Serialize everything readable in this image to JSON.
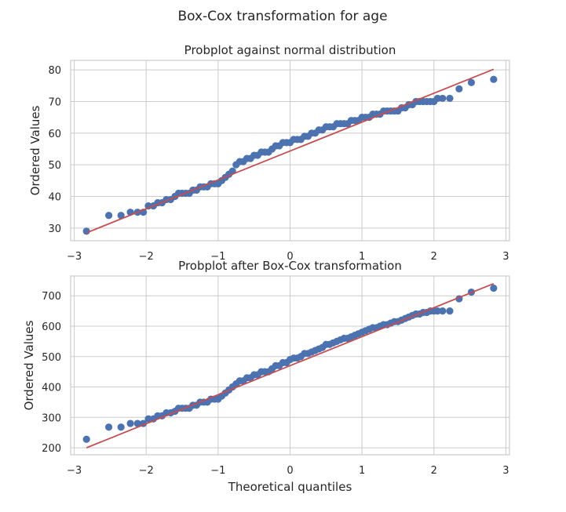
{
  "colors": {
    "points": "#4c72b0",
    "fit_line": "#c44e52",
    "grid": "#cccccc",
    "frame": "#cccccc"
  },
  "chart_data": {
    "type": "scatter",
    "suptitle": "Box-Cox transformation for age",
    "panels": [
      {
        "title": "Probplot against normal distribution",
        "xlabel": "",
        "ylabel": "Ordered Values",
        "xlim": [
          -3.05,
          3.05
        ],
        "ylim": [
          26,
          83
        ],
        "xticks": [
          -3,
          -2,
          -1,
          0,
          1,
          2,
          3
        ],
        "xtick_labels": [
          "−3",
          "−2",
          "−1",
          "0",
          "1",
          "2",
          "3"
        ],
        "yticks": [
          30,
          40,
          50,
          60,
          70,
          80
        ],
        "ytick_labels": [
          "30",
          "40",
          "50",
          "60",
          "70",
          "80"
        ],
        "grid": true,
        "fit_line": {
          "x": [
            -2.83,
            2.83
          ],
          "y": [
            28.5,
            80.2
          ]
        },
        "points": {
          "x": [
            -2.83,
            -2.52,
            -2.35,
            -2.22,
            -2.12,
            -2.04,
            -1.97,
            -1.9,
            -1.84,
            -1.78,
            -1.72,
            -1.66,
            -1.6,
            -1.55,
            -1.5,
            -1.45,
            -1.4,
            -1.35,
            -1.3,
            -1.25,
            -1.2,
            -1.15,
            -1.1,
            -1.05,
            -1.0,
            -0.95,
            -0.9,
            -0.85,
            -0.8,
            -0.75,
            -0.7,
            -0.65,
            -0.6,
            -0.55,
            -0.5,
            -0.45,
            -0.4,
            -0.35,
            -0.3,
            -0.25,
            -0.2,
            -0.15,
            -0.1,
            -0.05,
            0.0,
            0.05,
            0.1,
            0.15,
            0.2,
            0.25,
            0.3,
            0.35,
            0.4,
            0.45,
            0.5,
            0.55,
            0.6,
            0.65,
            0.7,
            0.75,
            0.8,
            0.85,
            0.9,
            0.95,
            1.0,
            1.05,
            1.1,
            1.15,
            1.2,
            1.25,
            1.3,
            1.35,
            1.4,
            1.45,
            1.5,
            1.55,
            1.6,
            1.65,
            1.7,
            1.75,
            1.8,
            1.85,
            1.9,
            1.95,
            2.0,
            2.05,
            2.12,
            2.22,
            2.35,
            2.52,
            2.83
          ],
          "y": [
            29,
            34,
            34,
            35,
            35,
            35,
            37,
            37,
            38,
            38,
            39,
            39,
            40,
            41,
            41,
            41,
            41,
            42,
            42,
            43,
            43,
            43,
            44,
            44,
            44,
            45,
            46,
            47,
            48,
            50,
            51,
            51,
            52,
            52,
            53,
            53,
            54,
            54,
            54,
            55,
            56,
            56,
            57,
            57,
            57,
            58,
            58,
            58,
            59,
            59,
            60,
            60,
            61,
            61,
            62,
            62,
            62,
            63,
            63,
            63,
            63,
            64,
            64,
            64,
            65,
            65,
            65,
            66,
            66,
            66,
            67,
            67,
            67,
            67,
            67,
            68,
            68,
            69,
            69,
            70,
            70,
            70,
            70,
            70,
            70,
            71,
            71,
            71,
            74,
            76,
            77
          ]
        }
      },
      {
        "title": "Probplot after Box-Cox transformation",
        "xlabel": "Theoretical quantiles",
        "ylabel": "Ordered Values",
        "xlim": [
          -3.05,
          3.05
        ],
        "ylim": [
          177,
          765
        ],
        "xticks": [
          -3,
          -2,
          -1,
          0,
          1,
          2,
          3
        ],
        "xtick_labels": [
          "−3",
          "−2",
          "−1",
          "0",
          "1",
          "2",
          "3"
        ],
        "yticks": [
          200,
          300,
          400,
          500,
          600,
          700
        ],
        "ytick_labels": [
          "200",
          "300",
          "400",
          "500",
          "600",
          "700"
        ],
        "grid": true,
        "fit_line": {
          "x": [
            -2.83,
            2.83
          ],
          "y": [
            200,
            740
          ]
        },
        "points": {
          "x": [
            -2.83,
            -2.52,
            -2.35,
            -2.22,
            -2.12,
            -2.04,
            -1.97,
            -1.9,
            -1.84,
            -1.78,
            -1.72,
            -1.66,
            -1.6,
            -1.55,
            -1.5,
            -1.45,
            -1.4,
            -1.35,
            -1.3,
            -1.25,
            -1.2,
            -1.15,
            -1.1,
            -1.05,
            -1.0,
            -0.95,
            -0.9,
            -0.85,
            -0.8,
            -0.75,
            -0.7,
            -0.65,
            -0.6,
            -0.55,
            -0.5,
            -0.45,
            -0.4,
            -0.35,
            -0.3,
            -0.25,
            -0.2,
            -0.15,
            -0.1,
            -0.05,
            0.0,
            0.05,
            0.1,
            0.15,
            0.2,
            0.25,
            0.3,
            0.35,
            0.4,
            0.45,
            0.5,
            0.55,
            0.6,
            0.65,
            0.7,
            0.75,
            0.8,
            0.85,
            0.9,
            0.95,
            1.0,
            1.05,
            1.1,
            1.15,
            1.2,
            1.25,
            1.3,
            1.35,
            1.4,
            1.45,
            1.5,
            1.55,
            1.6,
            1.65,
            1.7,
            1.75,
            1.8,
            1.85,
            1.9,
            1.95,
            2.0,
            2.05,
            2.12,
            2.22,
            2.35,
            2.52,
            2.83
          ],
          "y": [
            228,
            268,
            268,
            280,
            280,
            280,
            295,
            295,
            305,
            305,
            315,
            315,
            320,
            330,
            330,
            330,
            330,
            340,
            340,
            350,
            350,
            350,
            360,
            360,
            360,
            370,
            380,
            390,
            400,
            410,
            420,
            420,
            430,
            430,
            440,
            440,
            450,
            450,
            450,
            460,
            470,
            470,
            480,
            480,
            490,
            495,
            495,
            500,
            510,
            510,
            515,
            520,
            525,
            530,
            540,
            540,
            545,
            550,
            555,
            560,
            560,
            565,
            570,
            575,
            580,
            585,
            590,
            595,
            595,
            600,
            605,
            605,
            610,
            615,
            615,
            620,
            625,
            630,
            635,
            640,
            640,
            645,
            645,
            650,
            650,
            650,
            650,
            650,
            690,
            712,
            725
          ]
        }
      }
    ]
  }
}
